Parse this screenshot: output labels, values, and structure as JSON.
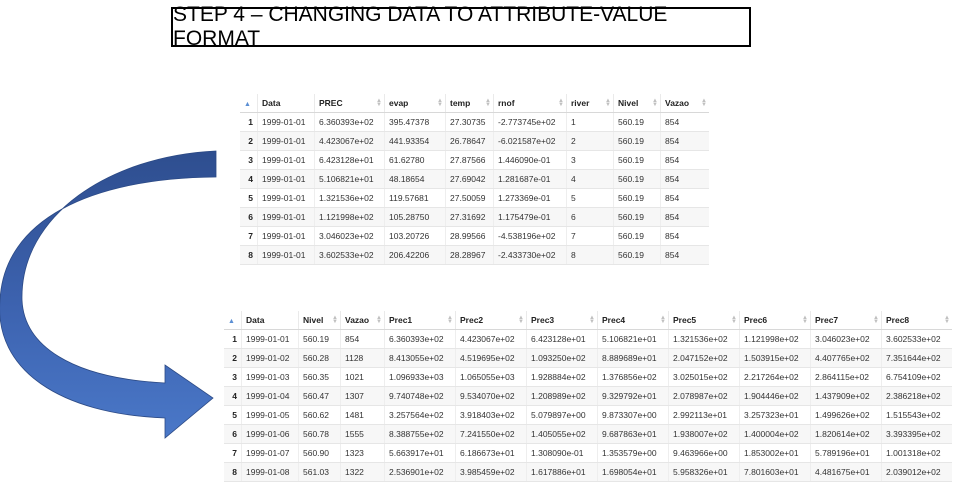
{
  "title": "STEP 4 – CHANGING DATA TO ATTRIBUTE-VALUE FORMAT",
  "table1": {
    "columns": [
      "Data",
      "PREC",
      "evap",
      "temp",
      "rnof",
      "river",
      "Nivel",
      "Vazao"
    ],
    "rows": [
      [
        "1",
        "1999-01-01",
        "6.360393e+02",
        "395.47378",
        "27.30735",
        "-2.773745e+02",
        "1",
        "560.19",
        "854"
      ],
      [
        "2",
        "1999-01-01",
        "4.423067e+02",
        "441.93354",
        "26.78647",
        "-6.021587e+02",
        "2",
        "560.19",
        "854"
      ],
      [
        "3",
        "1999-01-01",
        "6.423128e+01",
        "61.62780",
        "27.87566",
        "1.446090e-01",
        "3",
        "560.19",
        "854"
      ],
      [
        "4",
        "1999-01-01",
        "5.106821e+01",
        "48.18654",
        "27.69042",
        "1.281687e-01",
        "4",
        "560.19",
        "854"
      ],
      [
        "5",
        "1999-01-01",
        "1.321536e+02",
        "119.57681",
        "27.50059",
        "1.273369e-01",
        "5",
        "560.19",
        "854"
      ],
      [
        "6",
        "1999-01-01",
        "1.121998e+02",
        "105.28750",
        "27.31692",
        "1.175479e-01",
        "6",
        "560.19",
        "854"
      ],
      [
        "7",
        "1999-01-01",
        "3.046023e+02",
        "103.20726",
        "28.99566",
        "-4.538196e+02",
        "7",
        "560.19",
        "854"
      ],
      [
        "8",
        "1999-01-01",
        "3.602533e+02",
        "206.42206",
        "28.28967",
        "-2.433730e+02",
        "8",
        "560.19",
        "854"
      ]
    ]
  },
  "table2": {
    "columns": [
      "Data",
      "Nivel",
      "Vazao",
      "Prec1",
      "Prec2",
      "Prec3",
      "Prec4",
      "Prec5",
      "Prec6",
      "Prec7",
      "Prec8"
    ],
    "rows": [
      [
        "1",
        "1999-01-01",
        "560.19",
        "854",
        "6.360393e+02",
        "4.423067e+02",
        "6.423128e+01",
        "5.106821e+01",
        "1.321536e+02",
        "1.121998e+02",
        "3.046023e+02",
        "3.602533e+02"
      ],
      [
        "2",
        "1999-01-02",
        "560.28",
        "1128",
        "8.413055e+02",
        "4.519695e+02",
        "1.093250e+02",
        "8.889689e+01",
        "2.047152e+02",
        "1.503915e+02",
        "4.407765e+02",
        "7.351644e+02"
      ],
      [
        "3",
        "1999-01-03",
        "560.35",
        "1021",
        "1.096933e+03",
        "1.065055e+03",
        "1.928884e+02",
        "1.376856e+02",
        "3.025015e+02",
        "2.217264e+02",
        "2.864115e+02",
        "6.754109e+02"
      ],
      [
        "4",
        "1999-01-04",
        "560.47",
        "1307",
        "9.740748e+02",
        "9.534070e+02",
        "1.208989e+02",
        "9.329792e+01",
        "2.078987e+02",
        "1.904446e+02",
        "1.437909e+02",
        "2.386218e+02"
      ],
      [
        "5",
        "1999-01-05",
        "560.62",
        "1481",
        "3.257564e+02",
        "3.918403e+02",
        "5.079897e+00",
        "9.873307e+00",
        "2.992113e+01",
        "3.257323e+01",
        "1.499626e+02",
        "1.515543e+02"
      ],
      [
        "6",
        "1999-01-06",
        "560.78",
        "1555",
        "8.388755e+02",
        "7.241550e+02",
        "1.405055e+02",
        "9.687863e+01",
        "1.938007e+02",
        "1.400004e+02",
        "1.820614e+02",
        "3.393395e+02"
      ],
      [
        "7",
        "1999-01-07",
        "560.90",
        "1323",
        "5.663917e+01",
        "6.186673e+01",
        "1.308090e-01",
        "1.353579e+00",
        "9.463966e+00",
        "1.853002e+01",
        "5.789196e+01",
        "1.001318e+02"
      ],
      [
        "8",
        "1999-01-08",
        "561.03",
        "1322",
        "2.536901e+02",
        "3.985459e+02",
        "1.617886e+01",
        "1.698054e+01",
        "5.958326e+01",
        "7.801603e+01",
        "4.481675e+01",
        "2.039012e+02"
      ]
    ]
  },
  "colors": {
    "arrow_dark": "#2e4e8f",
    "arrow_light": "#4472c4",
    "sort_indicator": "#5b8fd4"
  }
}
